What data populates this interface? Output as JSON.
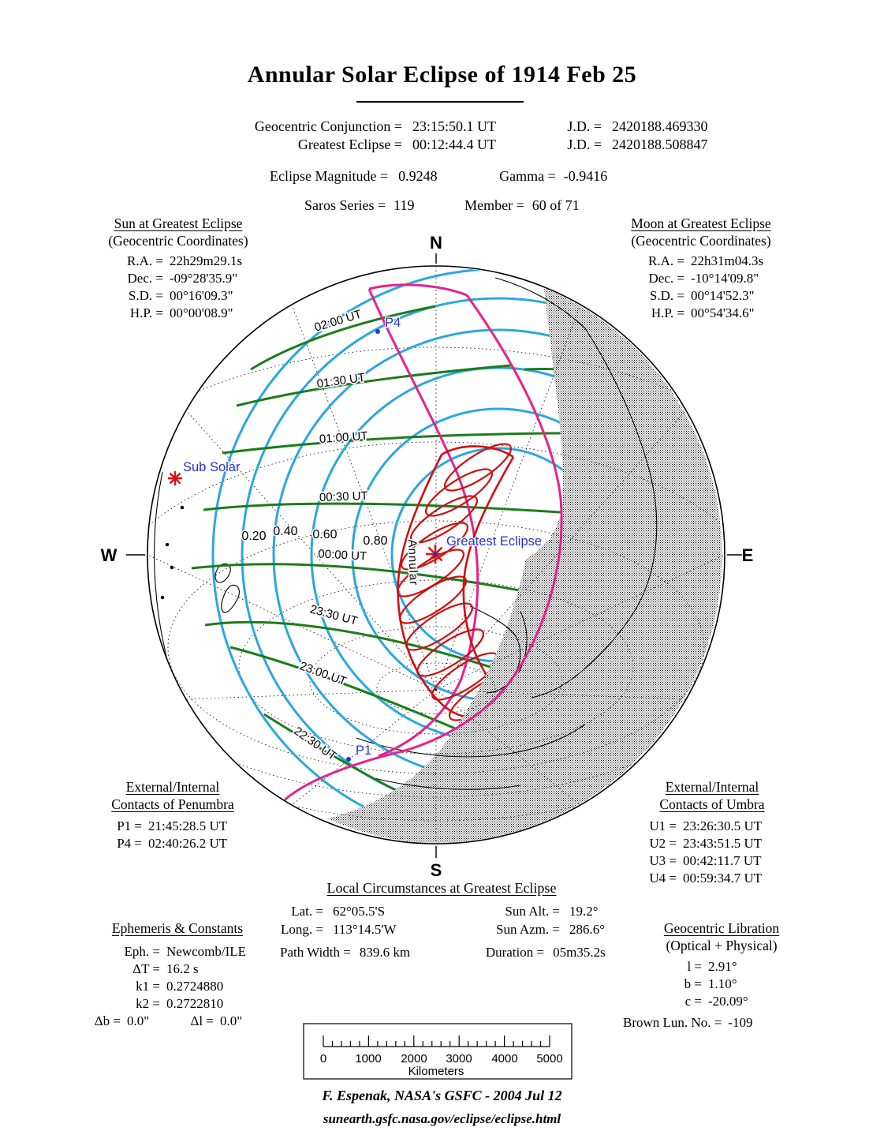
{
  "title": "Annular Solar Eclipse of  1914 Feb 25",
  "header": {
    "rows": [
      {
        "label": "Geocentric Conjunction =",
        "value": "23:15:50.1 UT",
        "jd_label": "J.D. =",
        "jd": "2420188.469330"
      },
      {
        "label": "Greatest Eclipse =",
        "value": "00:12:44.4 UT",
        "jd_label": "J.D. =",
        "jd": "2420188.508847"
      }
    ],
    "magnitude_label": "Eclipse Magnitude =",
    "magnitude": "0.9248",
    "gamma_label": "Gamma =",
    "gamma": "-0.9416",
    "saros_label": "Saros Series =",
    "saros": "119",
    "member_label": "Member =",
    "member": "60 of 71"
  },
  "sun_block": {
    "heading": "Sun at Greatest Eclipse",
    "subheading": "(Geocentric Coordinates)",
    "rows": [
      {
        "label": "R.A. =",
        "value": "22h29m29.1s"
      },
      {
        "label": "Dec. =",
        "value": "-09°28'35.9\""
      },
      {
        "label": "S.D. =",
        "value": "00°16'09.3\""
      },
      {
        "label": "H.P. =",
        "value": "00°00'08.9\""
      }
    ]
  },
  "moon_block": {
    "heading": "Moon at Greatest Eclipse",
    "subheading": "(Geocentric Coordinates)",
    "rows": [
      {
        "label": "R.A. =",
        "value": "22h31m04.3s"
      },
      {
        "label": "Dec. =",
        "value": "-10°14'09.8\""
      },
      {
        "label": "S.D. =",
        "value": "00°14'52.3\""
      },
      {
        "label": "H.P. =",
        "value": "00°54'34.6\""
      }
    ]
  },
  "map": {
    "compass": {
      "n": "N",
      "s": "S",
      "e": "E",
      "w": "W"
    },
    "time_labels": [
      "02:00 UT",
      "01:30 UT",
      "01:00 UT",
      "00:30 UT",
      "00:00 UT",
      "23:30 UT",
      "23:00 UT",
      "22:30 UT"
    ],
    "magnitude_labels": [
      "0.20",
      "0.40",
      "0.60",
      "0.80"
    ],
    "annular_label": "Annular",
    "sub_solar_label": "Sub Solar",
    "greatest_eclipse_label": "Greatest Eclipse",
    "p1_label": "P1",
    "p4_label": "P4",
    "colors": {
      "magnitude_contour": "#2aa7e0",
      "time_contour": "#1c7d1c",
      "penumbra_limit": "#e8218c",
      "annular_path": "#cc1111",
      "marker_red": "#dd1111",
      "label_blue": "#2233cc"
    }
  },
  "penumbra_block": {
    "heading_line1": "External/Internal",
    "heading_line2": "Contacts of Penumbra",
    "rows": [
      {
        "label": "P1 =",
        "value": "21:45:28.5 UT"
      },
      {
        "label": "P4 =",
        "value": "02:40:26.2 UT"
      }
    ]
  },
  "umbra_block": {
    "heading_line1": "External/Internal",
    "heading_line2": "Contacts of Umbra",
    "rows": [
      {
        "label": "U1 =",
        "value": "23:26:30.5 UT"
      },
      {
        "label": "U2 =",
        "value": "23:43:51.5 UT"
      },
      {
        "label": "U3 =",
        "value": "00:42:11.7 UT"
      },
      {
        "label": "U4 =",
        "value": "00:59:34.7 UT"
      }
    ]
  },
  "local_block": {
    "heading": "Local Circumstances at Greatest Eclipse",
    "lat_label": "Lat. =",
    "lat": "62°05.5'S",
    "long_label": "Long. =",
    "long": "113°14.5'W",
    "alt_label": "Sun Alt. =",
    "alt": "19.2°",
    "azm_label": "Sun Azm. =",
    "azm": "286.6°",
    "path_label": "Path Width =",
    "path": "839.6 km",
    "dur_label": "Duration =",
    "dur": "05m35.2s"
  },
  "ephemeris_block": {
    "heading": "Ephemeris & Constants",
    "rows": [
      {
        "label": "Eph. =",
        "value": "Newcomb/ILE"
      },
      {
        "label": "ΔT =",
        "value": "16.2 s"
      },
      {
        "label": "k1 =",
        "value": "0.2724880"
      },
      {
        "label": "k2 =",
        "value": "0.2722810"
      }
    ],
    "delta_b_label": "Δb =",
    "delta_b": "0.0\"",
    "delta_l_label": "Δl =",
    "delta_l": "0.0\""
  },
  "libration_block": {
    "heading": "Geocentric Libration",
    "subheading": "(Optical + Physical)",
    "rows": [
      {
        "label": "l =",
        "value": "2.91°"
      },
      {
        "label": "b =",
        "value": "1.10°"
      },
      {
        "label": "c =",
        "value": "-20.09°"
      }
    ],
    "brown_label": "Brown Lun. No. =",
    "brown": "-109"
  },
  "scale_bar": {
    "ticks": [
      "0",
      "1000",
      "2000",
      "3000",
      "4000",
      "5000"
    ],
    "unit": "Kilometers"
  },
  "footer": {
    "credit": "F. Espenak, NASA's GSFC -  2004 Jul 12",
    "url": "sunearth.gsfc.nasa.gov/eclipse/eclipse.html"
  }
}
